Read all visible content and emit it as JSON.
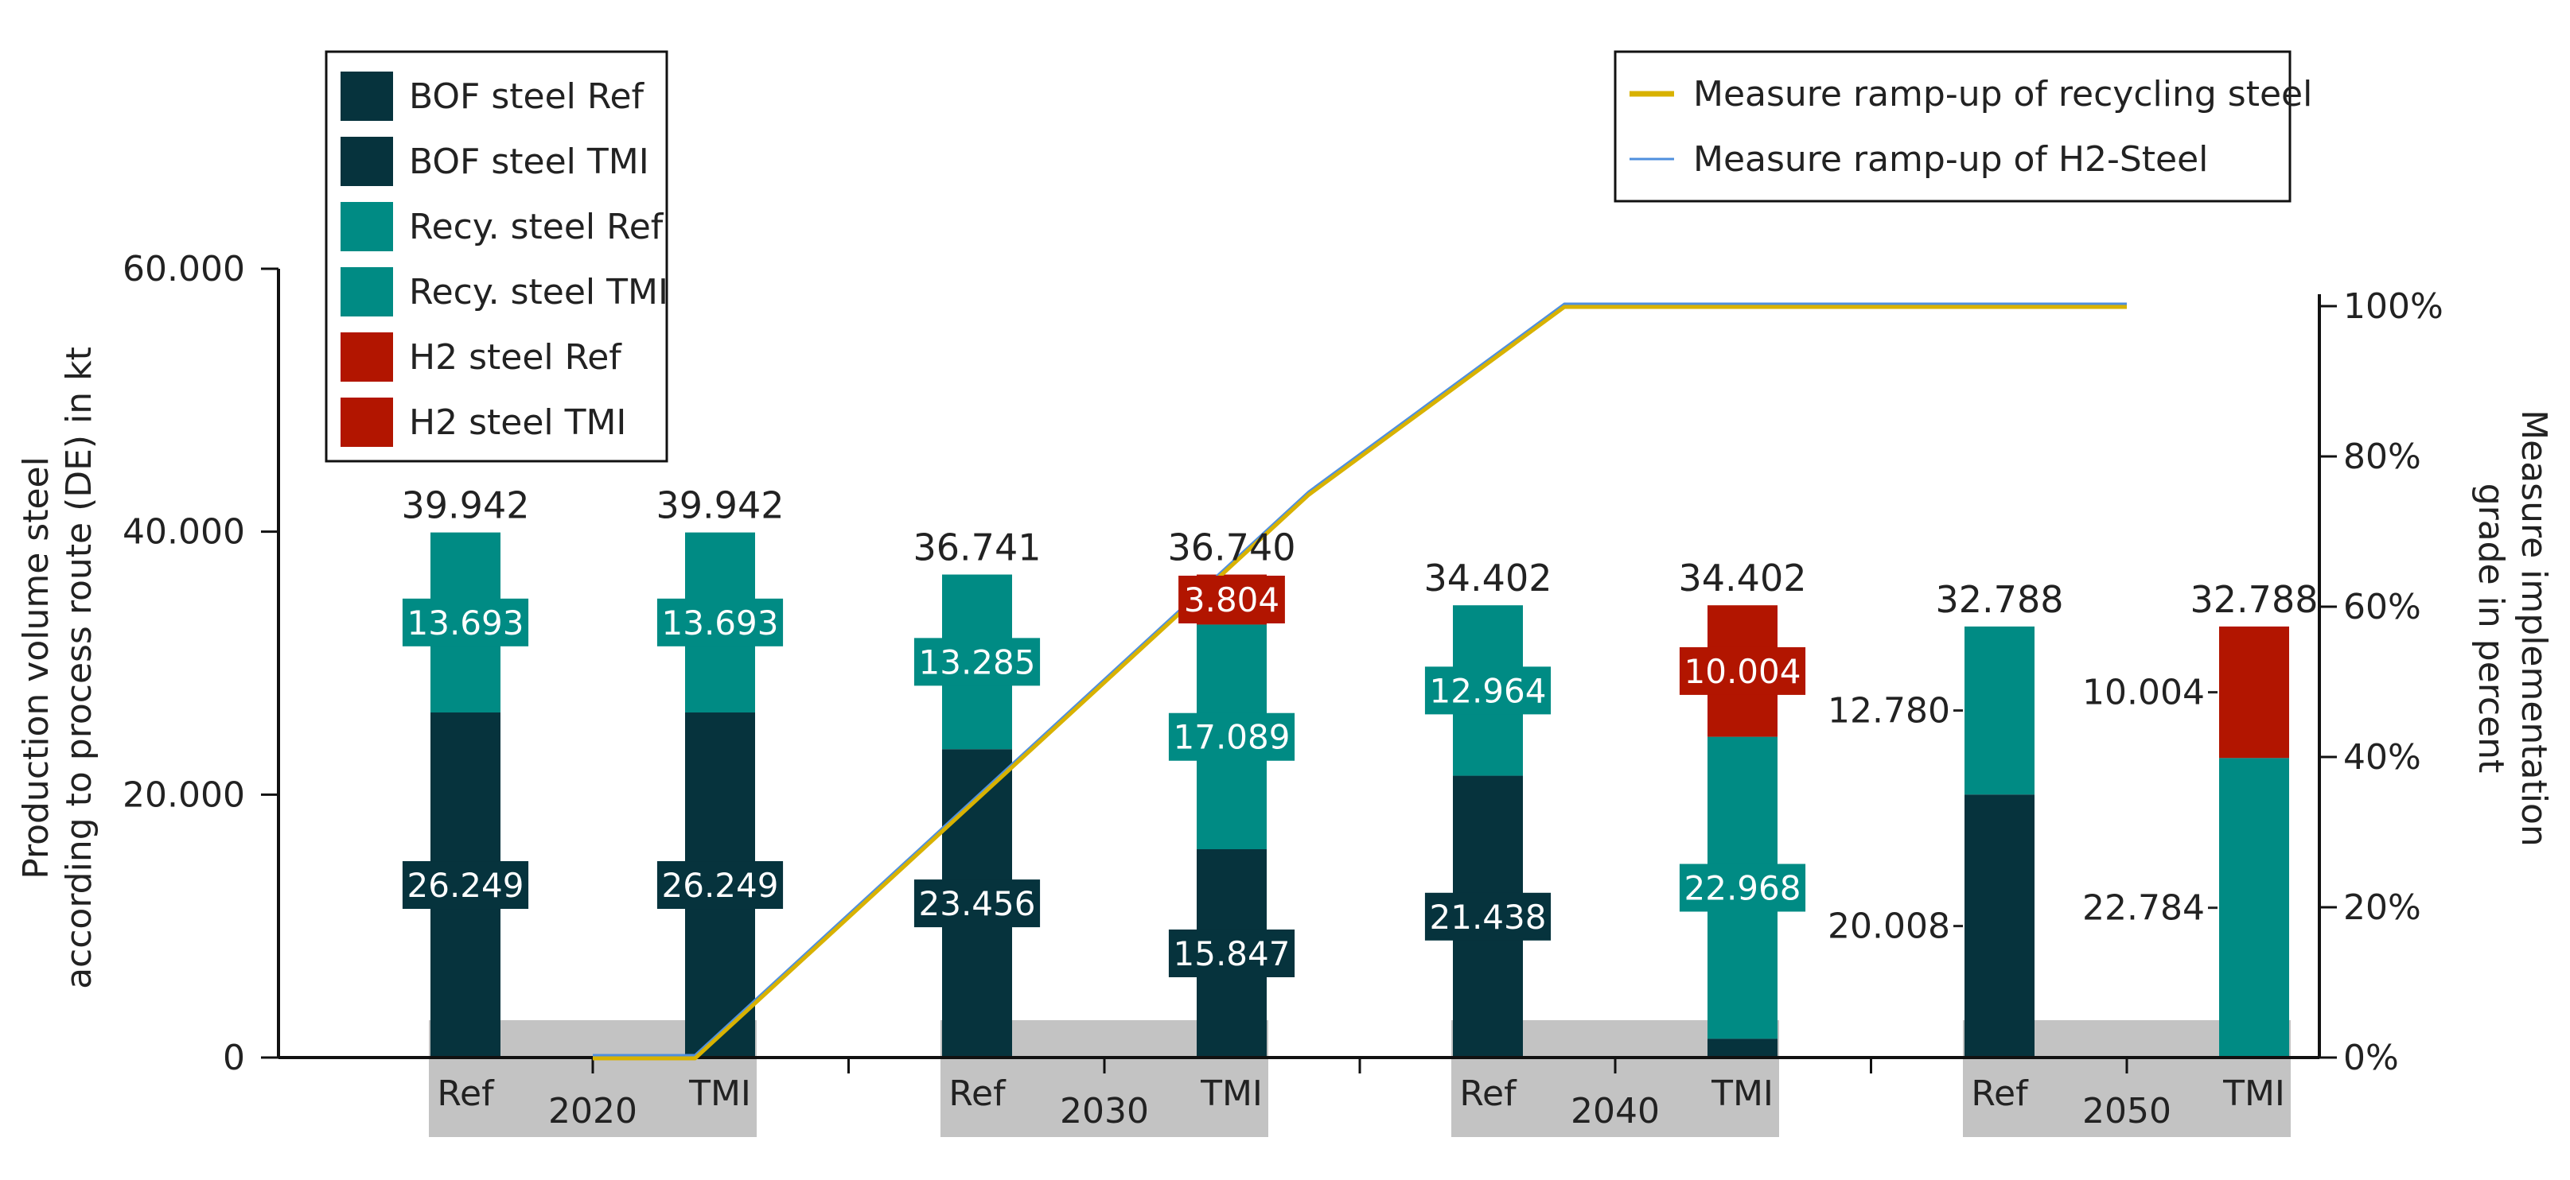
{
  "chart_data": {
    "type": "bar",
    "subtype": "stacked-bar-with-line",
    "colors": {
      "bof": "#06333d",
      "recy": "#008b84",
      "h2": "#b21500",
      "line_recycling": "#d8b200",
      "line_h2": "#4f8fde",
      "band": "#c3c3c3"
    },
    "y_axis_left": {
      "title_line1": "Production volume steel",
      "title_line2": "according to process route (DE) in kt",
      "ticks": [
        "0",
        "20.000",
        "40.000",
        "60.000"
      ],
      "tick_values": [
        0,
        20000,
        40000,
        60000
      ],
      "ylim": [
        0,
        60000
      ]
    },
    "y_axis_right": {
      "title_line1": "Measure implementation",
      "title_line2": "grade in percent",
      "ticks": [
        "0%",
        "20%",
        "40%",
        "60%",
        "80%",
        "100%"
      ],
      "tick_values": [
        0,
        20,
        40,
        60,
        80,
        100
      ],
      "ylim": [
        0,
        105
      ]
    },
    "legend_left": [
      {
        "label": "BOF steel Ref",
        "color": "#06333d"
      },
      {
        "label": "BOF steel TMI",
        "color": "#06333d"
      },
      {
        "label": "Recy. steel Ref",
        "color": "#008b84"
      },
      {
        "label": "Recy. steel TMI",
        "color": "#008b84"
      },
      {
        "label": "H2 steel Ref",
        "color": "#b21500"
      },
      {
        "label": "H2 steel TMI",
        "color": "#b21500"
      }
    ],
    "legend_right": [
      {
        "label": "Measure ramp-up of recycling steel",
        "color": "#d8b200"
      },
      {
        "label": "Measure ramp-up of H2-Steel",
        "color": "#4f8fde"
      }
    ],
    "groups": [
      {
        "year": "2020",
        "bars": [
          {
            "scenario": "Ref",
            "total": 39942,
            "total_label": "39.942",
            "segments": [
              {
                "series": "bof",
                "value": 26249,
                "label": "26.249",
                "label_style": "inside"
              },
              {
                "series": "recy",
                "value": 13693,
                "label": "13.693",
                "label_style": "inside"
              }
            ]
          },
          {
            "scenario": "TMI",
            "total": 39942,
            "total_label": "39.942",
            "segments": [
              {
                "series": "bof",
                "value": 26249,
                "label": "26.249",
                "label_style": "inside"
              },
              {
                "series": "recy",
                "value": 13693,
                "label": "13.693",
                "label_style": "inside"
              }
            ]
          }
        ]
      },
      {
        "year": "2030",
        "bars": [
          {
            "scenario": "Ref",
            "total": 36741,
            "total_label": "36.741",
            "segments": [
              {
                "series": "bof",
                "value": 23456,
                "label": "23.456",
                "label_style": "inside"
              },
              {
                "series": "recy",
                "value": 13285,
                "label": "13.285",
                "label_style": "inside"
              }
            ]
          },
          {
            "scenario": "TMI",
            "total": 36740,
            "total_label": "36.740",
            "segments": [
              {
                "series": "bof",
                "value": 15847,
                "label": "15.847",
                "label_style": "inside"
              },
              {
                "series": "recy",
                "value": 17089,
                "label": "17.089",
                "label_style": "inside"
              },
              {
                "series": "h2",
                "value": 3804,
                "label": "3.804",
                "label_style": "inside"
              }
            ]
          }
        ]
      },
      {
        "year": "2040",
        "bars": [
          {
            "scenario": "Ref",
            "total": 34402,
            "total_label": "34.402",
            "segments": [
              {
                "series": "bof",
                "value": 21438,
                "label": "21.438",
                "label_style": "inside"
              },
              {
                "series": "recy",
                "value": 12964,
                "label": "12.964",
                "label_style": "inside"
              }
            ]
          },
          {
            "scenario": "TMI",
            "total": 34402,
            "total_label": "34.402",
            "segments": [
              {
                "series": "bof",
                "value": 1430,
                "label": "",
                "label_style": "none"
              },
              {
                "series": "recy",
                "value": 22968,
                "label": "22.968",
                "label_style": "inside"
              },
              {
                "series": "h2",
                "value": 10004,
                "label": "10.004",
                "label_style": "inside"
              }
            ]
          }
        ]
      },
      {
        "year": "2050",
        "bars": [
          {
            "scenario": "Ref",
            "total": 32788,
            "total_label": "32.788",
            "segments": [
              {
                "series": "bof",
                "value": 20008,
                "label": "20.008",
                "label_style": "left"
              },
              {
                "series": "recy",
                "value": 12780,
                "label": "12.780",
                "label_style": "left"
              }
            ]
          },
          {
            "scenario": "TMI",
            "total": 32788,
            "total_label": "32.788",
            "segments": [
              {
                "series": "recy",
                "value": 22784,
                "label": "22.784",
                "label_style": "left"
              },
              {
                "series": "h2",
                "value": 10004,
                "label": "10.004",
                "label_style": "left"
              }
            ]
          }
        ]
      }
    ],
    "lines": [
      {
        "name": "Measure ramp-up of recycling steel",
        "color": "#d8b200",
        "points": [
          [
            2020,
            0
          ],
          [
            2022,
            0
          ],
          [
            2030,
            50
          ],
          [
            2034,
            75
          ],
          [
            2038,
            95
          ],
          [
            2039,
            100
          ],
          [
            2050,
            100
          ]
        ]
      },
      {
        "name": "Measure ramp-up of H2-Steel",
        "color": "#4f8fde",
        "points": [
          [
            2020,
            0
          ],
          [
            2022,
            0
          ],
          [
            2030,
            50
          ],
          [
            2034,
            75
          ],
          [
            2038,
            95
          ],
          [
            2039,
            100
          ],
          [
            2050,
            100
          ]
        ]
      }
    ]
  }
}
